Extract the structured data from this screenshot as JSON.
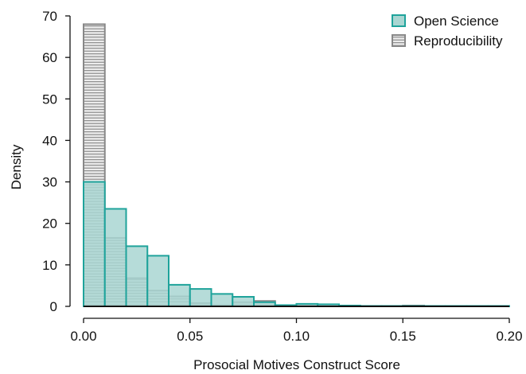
{
  "chart_data": {
    "type": "bar",
    "title": "",
    "xlabel": "Prosocial Motives Construct Score",
    "ylabel": "Density",
    "xlim": [
      0,
      0.2
    ],
    "ylim": [
      0,
      70
    ],
    "x_ticks": [
      "0.00",
      "0.05",
      "0.10",
      "0.15",
      "0.20"
    ],
    "y_ticks": [
      "0",
      "10",
      "20",
      "30",
      "40",
      "50",
      "60",
      "70"
    ],
    "bin_edges": [
      0.0,
      0.01,
      0.02,
      0.03,
      0.04,
      0.05,
      0.06,
      0.07,
      0.08,
      0.09,
      0.1,
      0.11,
      0.12,
      0.13,
      0.14,
      0.15,
      0.16,
      0.17,
      0.18,
      0.19,
      0.2
    ],
    "legend_position": "top-right",
    "grid": false,
    "series": [
      {
        "name": "Open Science",
        "style": "filled",
        "color": "#1fa39b",
        "fill": "#a9d6d2",
        "values": [
          30.0,
          23.5,
          14.5,
          12.2,
          5.2,
          4.2,
          3.0,
          2.3,
          1.0,
          0.3,
          0.6,
          0.5,
          0.2,
          0.1,
          0.1,
          0.1,
          0.1,
          0.1,
          0.1,
          0.1
        ]
      },
      {
        "name": "Reproducibility",
        "style": "hatched",
        "color": "#888888",
        "fill": "#d9d9d9",
        "values": [
          68.0,
          16.5,
          6.8,
          3.8,
          2.4,
          0.8,
          0.3,
          1.0,
          1.3,
          0.2,
          0.2,
          0.2,
          0.0,
          0.1,
          0.1,
          0.2,
          0.0,
          0.0,
          0.0,
          0.0
        ]
      }
    ]
  }
}
